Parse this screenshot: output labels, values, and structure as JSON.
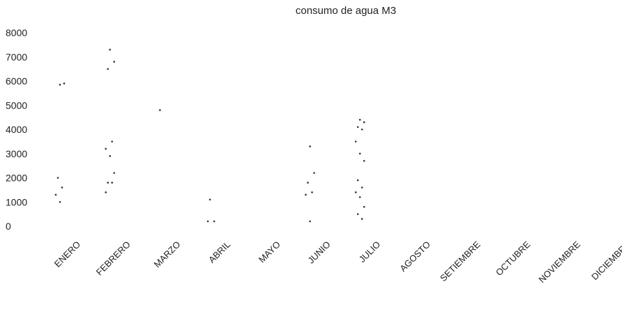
{
  "chart_data": {
    "type": "scatter",
    "title": "consumo de agua M3",
    "xlabel": "",
    "ylabel": "",
    "ylim": [
      0,
      8000
    ],
    "yticks": [
      "8000",
      "7000",
      "6000",
      "5000",
      "4000",
      "3000",
      "2000",
      "1000",
      "0"
    ],
    "categories": [
      "ENERO",
      "FEBRERO",
      "MARZO",
      "ABRIL",
      "MAYO",
      "JUNIO",
      "JULIO",
      "AGOSTO",
      "SETIEMBRE",
      "OCTUBRE",
      "NOVIEMBRE",
      "DICIEMBRE"
    ],
    "grid": false,
    "legend": "none",
    "point_color": "#333333",
    "points": [
      {
        "x": "ENERO",
        "y": 5850
      },
      {
        "x": "ENERO",
        "y": 5900
      },
      {
        "x": "ENERO",
        "y": 2000
      },
      {
        "x": "ENERO",
        "y": 1600
      },
      {
        "x": "ENERO",
        "y": 1300
      },
      {
        "x": "ENERO",
        "y": 1000
      },
      {
        "x": "FEBRERO",
        "y": 7300
      },
      {
        "x": "FEBRERO",
        "y": 6800
      },
      {
        "x": "FEBRERO",
        "y": 6500
      },
      {
        "x": "FEBRERO",
        "y": 3500
      },
      {
        "x": "FEBRERO",
        "y": 3200
      },
      {
        "x": "FEBRERO",
        "y": 2900
      },
      {
        "x": "FEBRERO",
        "y": 2200
      },
      {
        "x": "FEBRERO",
        "y": 1800
      },
      {
        "x": "FEBRERO",
        "y": 1800
      },
      {
        "x": "FEBRERO",
        "y": 1400
      },
      {
        "x": "MARZO",
        "y": 4800
      },
      {
        "x": "ABRIL",
        "y": 1100
      },
      {
        "x": "ABRIL",
        "y": 200
      },
      {
        "x": "ABRIL",
        "y": 200
      },
      {
        "x": "JUNIO",
        "y": 3300
      },
      {
        "x": "JUNIO",
        "y": 2200
      },
      {
        "x": "JUNIO",
        "y": 1800
      },
      {
        "x": "JUNIO",
        "y": 1400
      },
      {
        "x": "JUNIO",
        "y": 1300
      },
      {
        "x": "JUNIO",
        "y": 200
      },
      {
        "x": "JULIO",
        "y": 4400
      },
      {
        "x": "JULIO",
        "y": 4300
      },
      {
        "x": "JULIO",
        "y": 4100
      },
      {
        "x": "JULIO",
        "y": 4000
      },
      {
        "x": "JULIO",
        "y": 3500
      },
      {
        "x": "JULIO",
        "y": 3000
      },
      {
        "x": "JULIO",
        "y": 2700
      },
      {
        "x": "JULIO",
        "y": 1900
      },
      {
        "x": "JULIO",
        "y": 1600
      },
      {
        "x": "JULIO",
        "y": 1400
      },
      {
        "x": "JULIO",
        "y": 1200
      },
      {
        "x": "JULIO",
        "y": 800
      },
      {
        "x": "JULIO",
        "y": 500
      },
      {
        "x": "JULIO",
        "y": 300
      }
    ]
  }
}
